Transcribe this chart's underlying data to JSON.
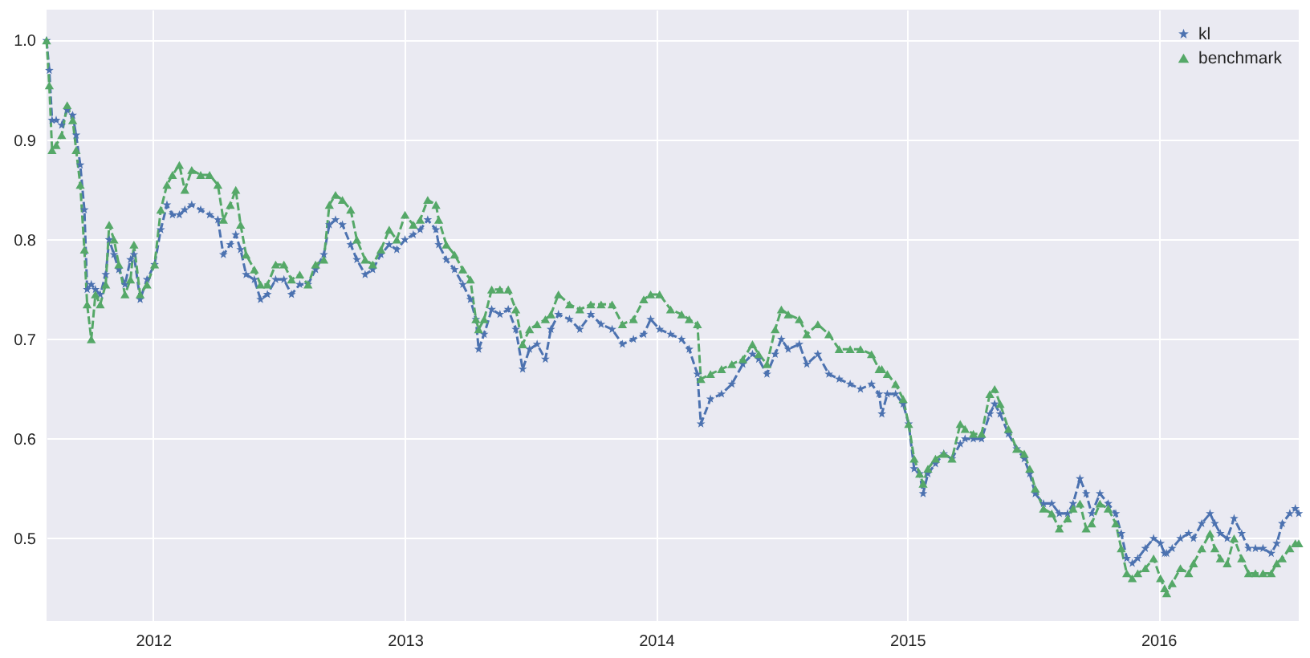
{
  "chart_data": {
    "type": "line",
    "x": [
      "2011-07-30",
      "2011-08-03",
      "2011-08-07",
      "2011-08-13",
      "2011-08-21",
      "2011-08-29",
      "2011-09-06",
      "2011-09-11",
      "2011-09-17",
      "2011-09-23",
      "2011-09-27",
      "2011-10-03",
      "2011-10-09",
      "2011-10-16",
      "2011-10-24",
      "2011-10-29",
      "2011-11-05",
      "2011-11-12",
      "2011-11-21",
      "2011-11-29",
      "2011-12-04",
      "2011-12-13",
      "2011-12-23",
      "2012-01-03",
      "2012-01-12",
      "2012-01-21",
      "2012-01-29",
      "2012-02-08",
      "2012-02-16",
      "2012-02-26",
      "2012-03-10",
      "2012-03-23",
      "2012-04-04",
      "2012-04-12",
      "2012-04-22",
      "2012-04-30",
      "2012-05-07",
      "2012-05-15",
      "2012-05-27",
      "2012-06-05",
      "2012-06-15",
      "2012-06-27",
      "2012-07-09",
      "2012-07-20",
      "2012-08-01",
      "2012-08-13",
      "2012-08-24",
      "2012-09-05",
      "2012-09-13",
      "2012-09-22",
      "2012-10-02",
      "2012-10-14",
      "2012-10-23",
      "2012-11-04",
      "2012-11-15",
      "2012-11-27",
      "2012-12-09",
      "2012-12-20",
      "2013-01-01",
      "2013-01-13",
      "2013-01-23",
      "2013-02-03",
      "2013-02-15",
      "2013-02-19",
      "2013-03-02",
      "2013-03-14",
      "2013-03-26",
      "2013-04-06",
      "2013-04-14",
      "2013-04-18",
      "2013-04-26",
      "2013-05-07",
      "2013-05-19",
      "2013-05-31",
      "2013-06-11",
      "2013-06-21",
      "2013-07-01",
      "2013-07-12",
      "2013-07-24",
      "2013-08-01",
      "2013-08-12",
      "2013-08-28",
      "2013-09-12",
      "2013-09-28",
      "2013-10-13",
      "2013-10-29",
      "2013-11-13",
      "2013-11-29",
      "2013-12-14",
      "2013-12-24",
      "2014-01-06",
      "2014-01-22",
      "2014-02-07",
      "2014-02-18",
      "2014-03-02",
      "2014-03-07",
      "2014-03-21",
      "2014-04-06",
      "2014-04-21",
      "2014-05-07",
      "2014-05-21",
      "2014-05-30",
      "2014-06-11",
      "2014-06-23",
      "2014-07-02",
      "2014-07-12",
      "2014-07-28",
      "2014-08-08",
      "2014-08-24",
      "2014-09-09",
      "2014-09-24",
      "2014-10-10",
      "2014-10-25",
      "2014-11-10",
      "2014-11-21",
      "2014-11-25",
      "2014-12-03",
      "2014-12-15",
      "2014-12-26",
      "2015-01-03",
      "2015-01-11",
      "2015-01-19",
      "2015-01-24",
      "2015-01-31",
      "2015-02-11",
      "2015-02-23",
      "2015-03-07",
      "2015-03-19",
      "2015-03-26",
      "2015-04-07",
      "2015-04-19",
      "2015-05-01",
      "2015-05-08",
      "2015-05-16",
      "2015-05-28",
      "2015-06-09",
      "2015-06-20",
      "2015-06-28",
      "2015-07-06",
      "2015-07-18",
      "2015-07-30",
      "2015-08-10",
      "2015-08-22",
      "2015-08-30",
      "2015-09-09",
      "2015-09-18",
      "2015-09-26",
      "2015-10-08",
      "2015-10-20",
      "2015-10-31",
      "2015-11-08",
      "2015-11-16",
      "2015-11-24",
      "2015-12-02",
      "2015-12-13",
      "2015-12-25",
      "2016-01-04",
      "2016-01-10",
      "2016-01-13",
      "2016-01-21",
      "2016-02-02",
      "2016-02-14",
      "2016-02-21",
      "2016-03-04",
      "2016-03-16",
      "2016-03-23",
      "2016-03-31",
      "2016-04-10",
      "2016-04-20",
      "2016-05-01",
      "2016-05-11",
      "2016-05-21",
      "2016-06-01",
      "2016-06-13",
      "2016-06-21",
      "2016-06-29",
      "2016-07-10",
      "2016-07-18",
      "2016-07-23"
    ],
    "series": [
      {
        "name": "kl",
        "color": "#4c72b0",
        "marker": "star",
        "values": [
          1.0,
          0.97,
          0.92,
          0.92,
          0.915,
          0.93,
          0.925,
          0.905,
          0.875,
          0.83,
          0.75,
          0.755,
          0.75,
          0.745,
          0.765,
          0.8,
          0.785,
          0.77,
          0.755,
          0.78,
          0.785,
          0.74,
          0.76,
          0.775,
          0.81,
          0.835,
          0.825,
          0.825,
          0.83,
          0.835,
          0.83,
          0.825,
          0.82,
          0.785,
          0.795,
          0.805,
          0.79,
          0.765,
          0.76,
          0.74,
          0.745,
          0.76,
          0.76,
          0.745,
          0.755,
          0.755,
          0.77,
          0.785,
          0.815,
          0.82,
          0.815,
          0.795,
          0.78,
          0.765,
          0.77,
          0.785,
          0.795,
          0.79,
          0.8,
          0.805,
          0.81,
          0.82,
          0.81,
          0.795,
          0.78,
          0.77,
          0.755,
          0.74,
          0.72,
          0.69,
          0.705,
          0.73,
          0.725,
          0.73,
          0.71,
          0.67,
          0.69,
          0.695,
          0.68,
          0.71,
          0.725,
          0.72,
          0.71,
          0.725,
          0.715,
          0.71,
          0.695,
          0.7,
          0.705,
          0.72,
          0.71,
          0.705,
          0.7,
          0.69,
          0.665,
          0.615,
          0.64,
          0.645,
          0.655,
          0.675,
          0.685,
          0.68,
          0.665,
          0.685,
          0.7,
          0.69,
          0.695,
          0.675,
          0.685,
          0.665,
          0.66,
          0.655,
          0.65,
          0.655,
          0.645,
          0.625,
          0.645,
          0.645,
          0.635,
          0.615,
          0.57,
          0.565,
          0.545,
          0.565,
          0.575,
          0.585,
          0.58,
          0.595,
          0.6,
          0.6,
          0.6,
          0.625,
          0.635,
          0.625,
          0.605,
          0.59,
          0.58,
          0.565,
          0.545,
          0.535,
          0.535,
          0.525,
          0.525,
          0.535,
          0.56,
          0.545,
          0.525,
          0.545,
          0.535,
          0.525,
          0.505,
          0.48,
          0.475,
          0.48,
          0.49,
          0.5,
          0.495,
          0.485,
          0.485,
          0.49,
          0.5,
          0.505,
          0.5,
          0.515,
          0.525,
          0.515,
          0.505,
          0.5,
          0.52,
          0.505,
          0.49,
          0.49,
          0.49,
          0.485,
          0.495,
          0.515,
          0.525,
          0.53,
          0.525
        ]
      },
      {
        "name": "benchmark",
        "color": "#55a868",
        "marker": "triangle",
        "values": [
          1.0,
          0.955,
          0.89,
          0.895,
          0.905,
          0.935,
          0.92,
          0.89,
          0.855,
          0.79,
          0.735,
          0.7,
          0.745,
          0.735,
          0.755,
          0.815,
          0.8,
          0.775,
          0.745,
          0.76,
          0.795,
          0.745,
          0.755,
          0.775,
          0.83,
          0.855,
          0.865,
          0.875,
          0.85,
          0.87,
          0.865,
          0.865,
          0.855,
          0.82,
          0.835,
          0.85,
          0.815,
          0.785,
          0.77,
          0.755,
          0.755,
          0.775,
          0.775,
          0.76,
          0.765,
          0.755,
          0.775,
          0.78,
          0.835,
          0.845,
          0.84,
          0.83,
          0.8,
          0.78,
          0.775,
          0.79,
          0.81,
          0.8,
          0.825,
          0.815,
          0.82,
          0.84,
          0.835,
          0.82,
          0.795,
          0.785,
          0.77,
          0.76,
          0.72,
          0.71,
          0.72,
          0.75,
          0.75,
          0.75,
          0.73,
          0.695,
          0.71,
          0.715,
          0.72,
          0.725,
          0.745,
          0.735,
          0.73,
          0.735,
          0.735,
          0.735,
          0.715,
          0.72,
          0.74,
          0.745,
          0.745,
          0.73,
          0.725,
          0.72,
          0.715,
          0.66,
          0.665,
          0.67,
          0.675,
          0.68,
          0.695,
          0.685,
          0.675,
          0.71,
          0.73,
          0.725,
          0.72,
          0.705,
          0.715,
          0.705,
          0.69,
          0.69,
          0.69,
          0.685,
          0.67,
          0.67,
          0.665,
          0.655,
          0.64,
          0.615,
          0.58,
          0.565,
          0.555,
          0.57,
          0.58,
          0.585,
          0.58,
          0.615,
          0.61,
          0.605,
          0.605,
          0.645,
          0.65,
          0.635,
          0.61,
          0.59,
          0.585,
          0.57,
          0.55,
          0.53,
          0.525,
          0.51,
          0.52,
          0.53,
          0.535,
          0.51,
          0.515,
          0.535,
          0.53,
          0.515,
          0.49,
          0.465,
          0.46,
          0.465,
          0.47,
          0.48,
          0.46,
          0.45,
          0.445,
          0.455,
          0.47,
          0.465,
          0.475,
          0.49,
          0.505,
          0.49,
          0.48,
          0.475,
          0.5,
          0.48,
          0.465,
          0.465,
          0.465,
          0.465,
          0.475,
          0.48,
          0.49,
          0.495,
          0.495
        ]
      }
    ],
    "xlim": [
      "2011-07-30",
      "2016-07-23"
    ],
    "xticks": [
      "2012",
      "2013",
      "2014",
      "2015",
      "2016"
    ],
    "ylim": [
      0.417,
      1.031
    ],
    "yticks": [
      0.5,
      0.6,
      0.7,
      0.8,
      0.9,
      {
        "value": 1.0,
        "label": "1.0"
      }
    ],
    "line_style": "dashed",
    "grid": true,
    "legend": "top right"
  }
}
